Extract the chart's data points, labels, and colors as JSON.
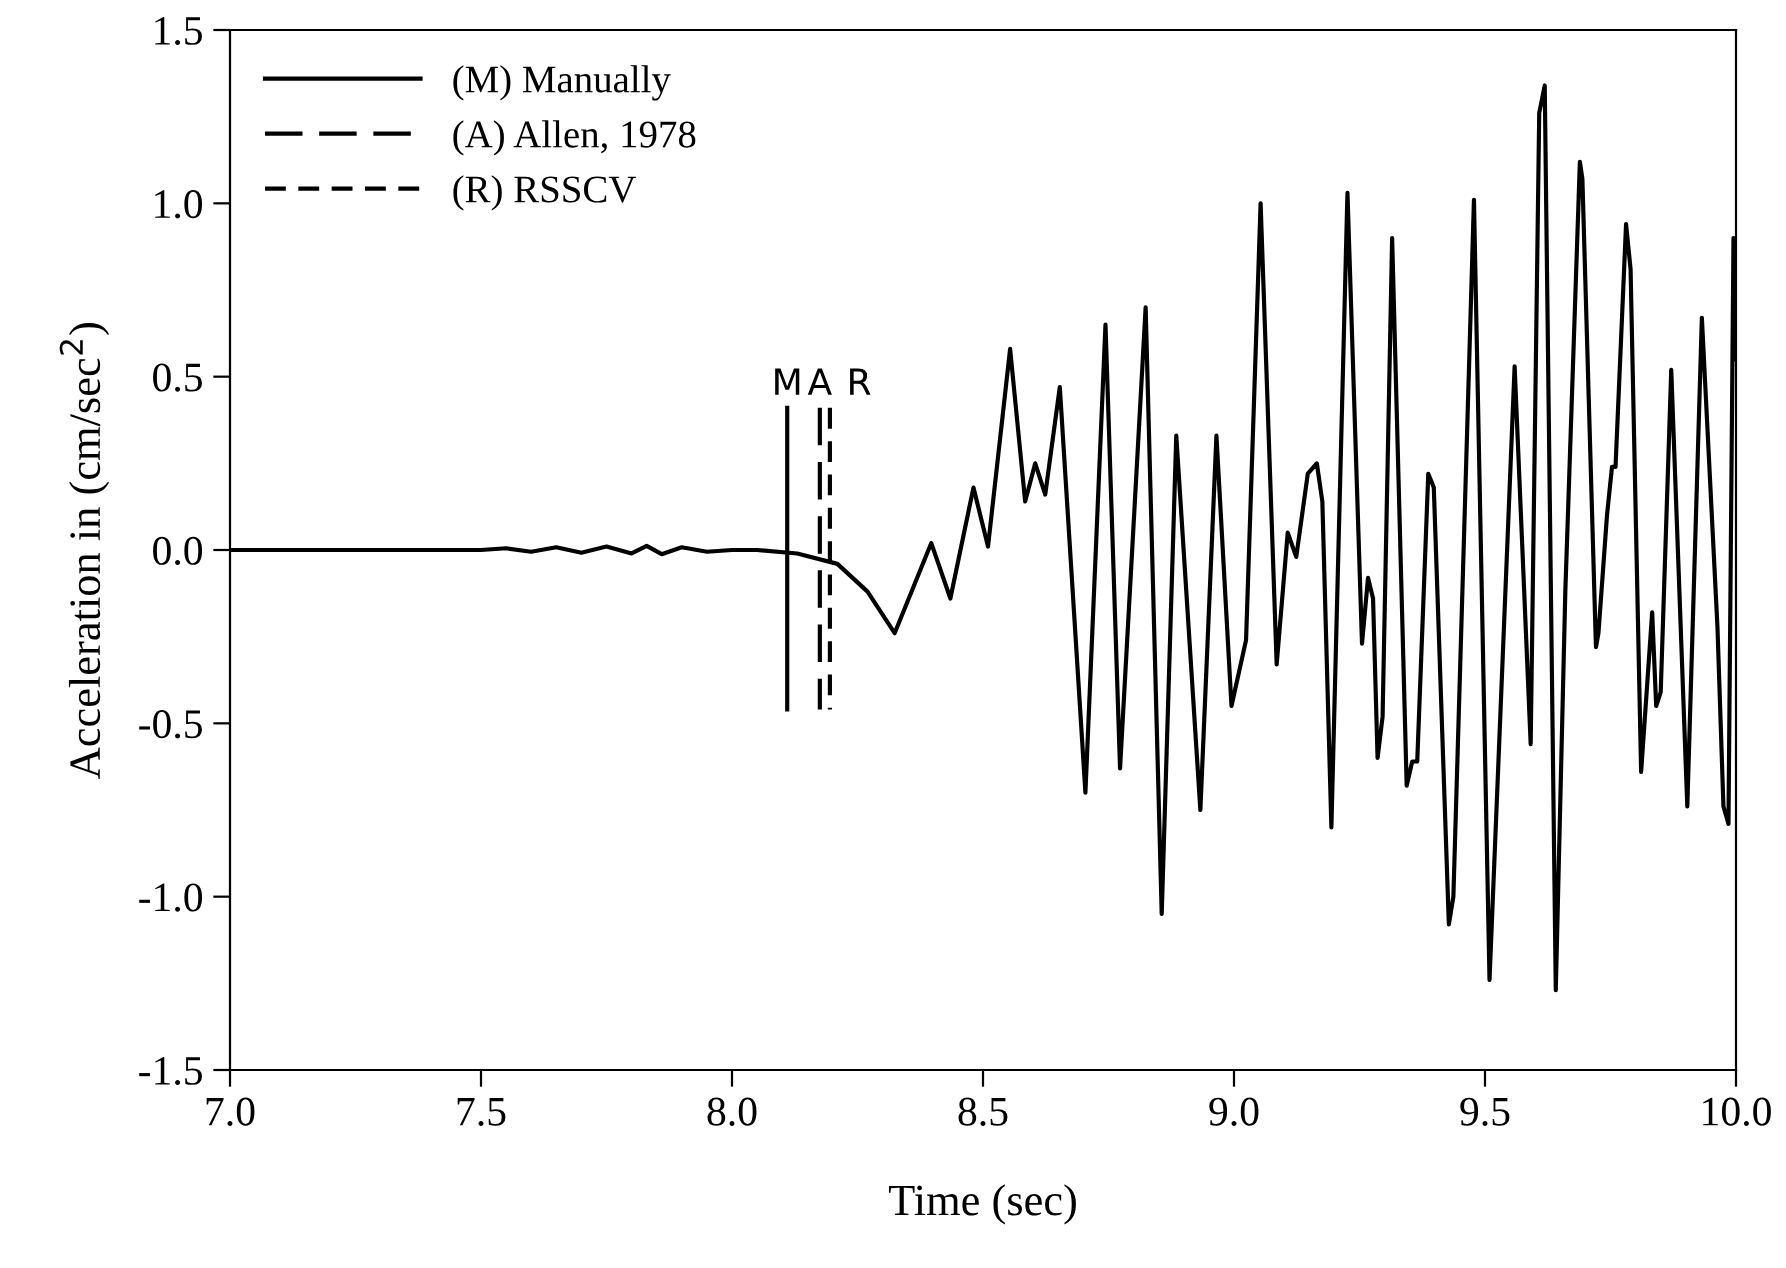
{
  "chart_data": {
    "type": "line",
    "xlabel": "Time (sec)",
    "ylabel": "Acceleration in (cm/sec$^{2}$)",
    "xlim": [
      7.0,
      10.0
    ],
    "ylim": [
      -1.5,
      1.5
    ],
    "xticks": [
      {
        "value": 7.0,
        "label": "7.0"
      },
      {
        "value": 7.5,
        "label": "7.5"
      },
      {
        "value": 8.0,
        "label": "8.0"
      },
      {
        "value": 8.5,
        "label": "8.5"
      },
      {
        "value": 9.0,
        "label": "9.0"
      },
      {
        "value": 9.5,
        "label": "9.5"
      },
      {
        "value": 10.0,
        "label": "10.0"
      }
    ],
    "yticks": [
      {
        "value": -1.5,
        "label": "-1.5"
      },
      {
        "value": -1.0,
        "label": "-1.0"
      },
      {
        "value": -0.5,
        "label": "-0.5"
      },
      {
        "value": 0.0,
        "label": "0.0"
      },
      {
        "value": 0.5,
        "label": "0.5"
      },
      {
        "value": 1.0,
        "label": "1.0"
      },
      {
        "value": 1.5,
        "label": "1.5"
      }
    ],
    "grid": false,
    "legend": "top left",
    "series": [
      {
        "color": "#000000",
        "line_style": "solid",
        "x": [
          7.0,
          7.1,
          7.2,
          7.3,
          7.4,
          7.5,
          7.55,
          7.6,
          7.65,
          7.7,
          7.75,
          7.8,
          7.83,
          7.86,
          7.9,
          7.95,
          8.0,
          8.05,
          8.13,
          8.21,
          8.27,
          8.324,
          8.397,
          8.435,
          8.481,
          8.51,
          8.554,
          8.584,
          8.604,
          8.624,
          8.653,
          8.704,
          8.744,
          8.773,
          8.824,
          8.856,
          8.885,
          8.933,
          8.965,
          8.995,
          9.024,
          9.053,
          9.085,
          9.107,
          9.124,
          9.147,
          9.165,
          9.176,
          9.194,
          9.226,
          9.255,
          9.267,
          9.277,
          9.286,
          9.296,
          9.315,
          9.344,
          9.355,
          9.365,
          9.387,
          9.398,
          9.428,
          9.437,
          9.478,
          9.509,
          9.559,
          9.591,
          9.608,
          9.619,
          9.641,
          9.66,
          9.689,
          9.694,
          9.721,
          9.726,
          9.743,
          9.753,
          9.76,
          9.781,
          9.79,
          9.811,
          9.833,
          9.841,
          9.85,
          9.871,
          9.903,
          9.932,
          9.963,
          9.975,
          9.985,
          9.995,
          10.0
        ],
        "values": [
          0.0,
          0.0,
          0.0,
          0.0,
          0.0,
          0.0,
          0.005,
          -0.005,
          0.008,
          -0.008,
          0.01,
          -0.01,
          0.012,
          -0.012,
          0.008,
          -0.005,
          0.0,
          0.0,
          -0.01,
          -0.04,
          -0.12,
          -0.24,
          0.02,
          -0.14,
          0.18,
          0.01,
          0.58,
          0.14,
          0.25,
          0.16,
          0.47,
          -0.7,
          0.65,
          -0.63,
          0.7,
          -1.05,
          0.33,
          -0.75,
          0.33,
          -0.45,
          -0.26,
          1.0,
          -0.33,
          0.05,
          -0.02,
          0.22,
          0.25,
          0.14,
          -0.8,
          1.03,
          -0.27,
          -0.08,
          -0.14,
          -0.6,
          -0.48,
          0.9,
          -0.68,
          -0.61,
          -0.61,
          0.22,
          0.18,
          -1.08,
          -1.0,
          1.01,
          -1.24,
          0.53,
          -0.56,
          1.26,
          1.34,
          -1.27,
          -0.12,
          1.12,
          1.07,
          -0.28,
          -0.24,
          0.1,
          0.24,
          0.24,
          0.94,
          0.81,
          -0.64,
          -0.18,
          -0.45,
          -0.41,
          0.52,
          -0.74,
          0.67,
          -0.22,
          -0.74,
          -0.79,
          0.9,
          0.55
        ]
      },
      {
        "name": "(M) Manually",
        "color": "#000000",
        "line_style": "solid",
        "x": [
          8.11,
          8.11
        ],
        "values": [
          0.41,
          -0.46
        ]
      },
      {
        "name": "(A) Allen, 1978",
        "color": "#000000",
        "line_style": "dashed",
        "x": [
          8.175,
          8.175
        ],
        "values": [
          0.41,
          -0.46
        ]
      },
      {
        "name": "(R) RSSCV",
        "color": "#000000",
        "line_style": "dashed",
        "x": [
          8.195,
          8.195
        ],
        "values": [
          0.41,
          -0.46
        ]
      }
    ],
    "annotations": [
      {
        "text": "M",
        "x": 8.11,
        "y": 0.41
      },
      {
        "text": "A",
        "x": 8.175,
        "y": 0.41
      },
      {
        "text": "R",
        "x": 8.195,
        "y": 0.41
      }
    ]
  }
}
